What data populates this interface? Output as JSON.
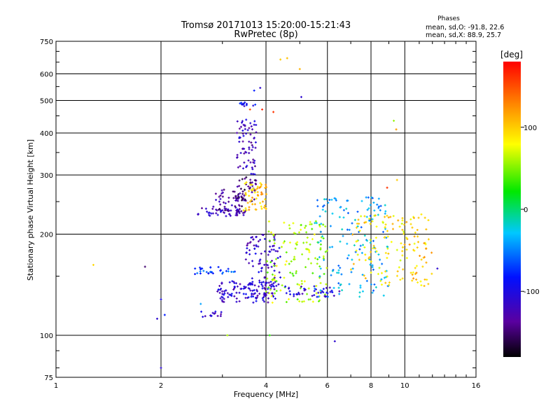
{
  "chart_data": {
    "type": "scatter",
    "title": "Tromsø 20171013 15:20:00-15:21:43",
    "subtitle": "RwPretec (8p)",
    "xlabel": "Frequency [MHz]",
    "ylabel": "Stationary phase Virtual Height [km]",
    "x_scale": "log2",
    "y_scale": "log",
    "xlim": [
      1,
      16
    ],
    "ylim": [
      75,
      750
    ],
    "x_ticks": [
      1,
      2,
      4,
      6,
      8,
      10,
      16
    ],
    "y_ticks": [
      75,
      100,
      200,
      300,
      400,
      500,
      600,
      750
    ],
    "grid": true,
    "stats": {
      "heading": "Phases",
      "line_o": "mean, sd,O: -91.8, 22.6",
      "line_x": "mean, sd,X:  88.9, 25.7"
    },
    "colorbar": {
      "label": "[deg]",
      "range": [
        -180,
        180
      ],
      "ticks": [
        100,
        0,
        -100
      ],
      "colormap": "rainbow"
    },
    "clusters": [
      {
        "f_min": 2.55,
        "f_max": 3.5,
        "h_min": 225,
        "h_max": 240,
        "count": 45,
        "phase": -120
      },
      {
        "f_min": 2.8,
        "f_max": 3.5,
        "h_min": 232,
        "h_max": 272,
        "count": 50,
        "phase": -135
      },
      {
        "f_min": 3.3,
        "f_max": 3.75,
        "h_min": 250,
        "h_max": 300,
        "count": 45,
        "phase": -145
      },
      {
        "f_min": 3.3,
        "f_max": 3.75,
        "h_min": 300,
        "h_max": 440,
        "count": 70,
        "phase": -120
      },
      {
        "f_min": 3.45,
        "f_max": 4.05,
        "h_min": 235,
        "h_max": 290,
        "count": 55,
        "phase": 105
      },
      {
        "f_min": 3.35,
        "f_max": 3.8,
        "h_min": 480,
        "h_max": 495,
        "count": 12,
        "phase": -95
      },
      {
        "f_min": 2.9,
        "f_max": 4.3,
        "h_min": 125,
        "h_max": 145,
        "count": 120,
        "phase": -110
      },
      {
        "f_min": 3.5,
        "f_max": 4.4,
        "h_min": 140,
        "h_max": 200,
        "count": 90,
        "phase": -115
      },
      {
        "f_min": 2.5,
        "f_max": 3.3,
        "h_min": 152,
        "h_max": 160,
        "count": 30,
        "phase": -70
      },
      {
        "f_min": 4.0,
        "f_max": 6.0,
        "h_min": 125,
        "h_max": 220,
        "count": 140,
        "phase": 60
      },
      {
        "f_min": 4.5,
        "f_max": 6.5,
        "h_min": 130,
        "h_max": 140,
        "count": 40,
        "phase": -105
      },
      {
        "f_min": 5.5,
        "f_max": 9.0,
        "h_min": 130,
        "h_max": 260,
        "count": 150,
        "phase": -40
      },
      {
        "f_min": 7.0,
        "f_max": 10.0,
        "h_min": 140,
        "h_max": 230,
        "count": 90,
        "phase": 90
      },
      {
        "f_min": 9.8,
        "f_max": 12.0,
        "h_min": 140,
        "h_max": 230,
        "count": 60,
        "phase": 100
      },
      {
        "f_min": 2.6,
        "f_max": 3.0,
        "h_min": 113,
        "h_max": 118,
        "count": 14,
        "phase": -110
      }
    ],
    "points": [
      {
        "f": 1.28,
        "h": 162,
        "phase": 95
      },
      {
        "f": 1.8,
        "h": 160,
        "phase": -150
      },
      {
        "f": 1.95,
        "h": 112,
        "phase": -110
      },
      {
        "f": 2.05,
        "h": 115,
        "phase": -80
      },
      {
        "f": 2.0,
        "h": 80,
        "phase": -110
      },
      {
        "f": 2.0,
        "h": 128,
        "phase": -100
      },
      {
        "f": 2.6,
        "h": 124,
        "phase": -40
      },
      {
        "f": 3.1,
        "h": 100,
        "phase": 60
      },
      {
        "f": 3.6,
        "h": 470,
        "phase": 150
      },
      {
        "f": 3.9,
        "h": 470,
        "phase": 165
      },
      {
        "f": 3.85,
        "h": 545,
        "phase": -110
      },
      {
        "f": 3.7,
        "h": 535,
        "phase": -80
      },
      {
        "f": 4.2,
        "h": 462,
        "phase": 160
      },
      {
        "f": 4.4,
        "h": 662,
        "phase": 100
      },
      {
        "f": 4.6,
        "h": 668,
        "phase": 105
      },
      {
        "f": 5.0,
        "h": 620,
        "phase": 110
      },
      {
        "f": 5.05,
        "h": 512,
        "phase": -110
      },
      {
        "f": 9.3,
        "h": 435,
        "phase": 55
      },
      {
        "f": 9.45,
        "h": 410,
        "phase": 120
      },
      {
        "f": 6.3,
        "h": 96,
        "phase": -110
      },
      {
        "f": 4.1,
        "h": 100,
        "phase": 30
      },
      {
        "f": 12.4,
        "h": 158,
        "phase": -110
      },
      {
        "f": 9.5,
        "h": 290,
        "phase": 100
      },
      {
        "f": 8.9,
        "h": 275,
        "phase": 160
      }
    ]
  }
}
